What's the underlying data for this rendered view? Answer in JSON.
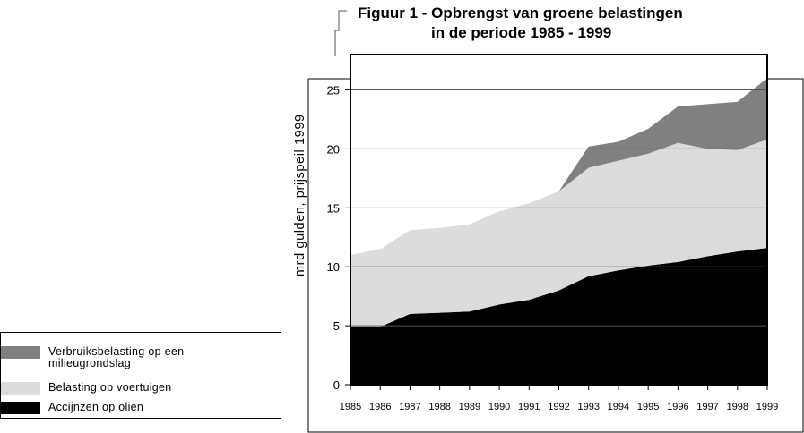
{
  "figure": {
    "title_line1": "Figuur 1 - Opbrengst van groene belastingen",
    "title_line2": "in de periode 1985 - 1999"
  },
  "legend": {
    "items": [
      {
        "label": "Verbruiksbelasting op een milieugrondslag",
        "color": "#808080"
      },
      {
        "label": "Belasting op voertuigen",
        "color": "#dcdcdc"
      },
      {
        "label": "Accijnzen op oliën",
        "color": "#000000"
      }
    ]
  },
  "chart_data": {
    "type": "area",
    "stacked": true,
    "title": "Figuur 1 - Opbrengst van groene belastingen in de periode 1985 - 1999",
    "xlabel": "",
    "ylabel": "mrd gulden, prijspeil 1999",
    "x": [
      "1985",
      "1986",
      "1987",
      "1988",
      "1989",
      "1990",
      "1991",
      "1992",
      "1993",
      "1994",
      "1995",
      "1996",
      "1997",
      "1998",
      "1999"
    ],
    "ylim": [
      0,
      28
    ],
    "yticks": [
      0,
      5,
      10,
      15,
      20,
      25
    ],
    "grid": true,
    "series": [
      {
        "name": "Accijnzen op oliën",
        "color": "#000000",
        "values": [
          4.9,
          4.9,
          6.0,
          6.1,
          6.2,
          6.8,
          7.2,
          8.0,
          9.2,
          9.7,
          10.1,
          10.4,
          10.9,
          11.3,
          11.6
        ]
      },
      {
        "name": "Belasting op voertuigen",
        "color": "#dcdcdc",
        "values": [
          6.1,
          6.6,
          7.1,
          7.2,
          7.4,
          7.9,
          8.2,
          8.4,
          9.2,
          9.3,
          9.5,
          10.1,
          9.1,
          8.6,
          9.2
        ]
      },
      {
        "name": "Verbruiksbelasting op een milieugrondslag",
        "color": "#808080",
        "values": [
          0,
          0,
          0,
          0,
          0,
          0,
          0,
          0,
          1.8,
          1.6,
          2.1,
          3.1,
          3.8,
          4.1,
          5.2
        ]
      }
    ]
  }
}
